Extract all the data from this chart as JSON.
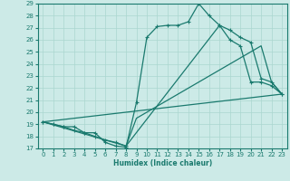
{
  "xlabel": "Humidex (Indice chaleur)",
  "xlim": [
    -0.5,
    23.5
  ],
  "ylim": [
    17,
    29
  ],
  "xticks": [
    0,
    1,
    2,
    3,
    4,
    5,
    6,
    7,
    8,
    9,
    10,
    11,
    12,
    13,
    14,
    15,
    16,
    17,
    18,
    19,
    20,
    21,
    22,
    23
  ],
  "yticks": [
    17,
    18,
    19,
    20,
    21,
    22,
    23,
    24,
    25,
    26,
    27,
    28,
    29
  ],
  "bg_color": "#cceae7",
  "line_color": "#1a7a6e",
  "grid_color": "#aad6d0",
  "line1_x": [
    0,
    1,
    2,
    3,
    4,
    5,
    6,
    7,
    8,
    9,
    10,
    11,
    12,
    13,
    14,
    15,
    16,
    17,
    18,
    19,
    20,
    21,
    22,
    23
  ],
  "line1_y": [
    19.2,
    19.0,
    18.8,
    18.8,
    18.3,
    18.3,
    17.5,
    17.2,
    17.1,
    20.8,
    26.2,
    27.1,
    27.2,
    27.2,
    27.5,
    29.0,
    28.0,
    27.2,
    26.0,
    25.5,
    22.5,
    22.5,
    22.2,
    21.5
  ],
  "line2_x": [
    0,
    1,
    2,
    3,
    4,
    5,
    6,
    7,
    8,
    17,
    18,
    19,
    20,
    21,
    22,
    23
  ],
  "line2_y": [
    19.2,
    19.0,
    18.8,
    18.5,
    18.3,
    18.0,
    17.7,
    17.5,
    17.2,
    27.2,
    26.8,
    26.2,
    25.8,
    22.8,
    22.5,
    21.5
  ],
  "line3_x": [
    0,
    23
  ],
  "line3_y": [
    19.2,
    21.5
  ],
  "line4_x": [
    0,
    8,
    9,
    10,
    11,
    12,
    13,
    14,
    15,
    16,
    17,
    18,
    19,
    20,
    21,
    22,
    23
  ],
  "line4_y": [
    19.2,
    17.2,
    19.5,
    20.0,
    20.5,
    21.0,
    21.5,
    22.0,
    22.5,
    23.0,
    23.5,
    24.0,
    24.5,
    25.0,
    25.5,
    22.5,
    21.5
  ]
}
